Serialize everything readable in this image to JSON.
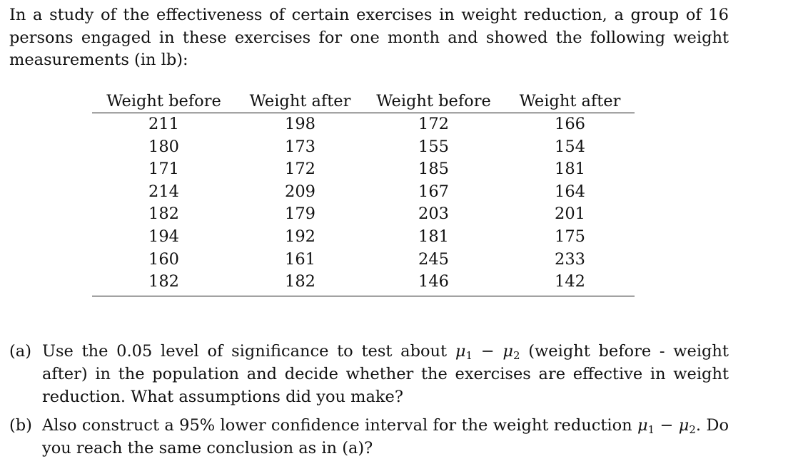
{
  "intro": "In a study of the effectiveness of certain exercises in weight reduction, a group of 16 persons engaged in these exercises for one month and showed the following weight measurements (in lb):",
  "tables": {
    "left": {
      "headers": [
        "Weight before",
        "Weight after"
      ],
      "rows": [
        [
          "211",
          "198"
        ],
        [
          "180",
          "173"
        ],
        [
          "171",
          "172"
        ],
        [
          "214",
          "209"
        ],
        [
          "182",
          "179"
        ],
        [
          "194",
          "192"
        ],
        [
          "160",
          "161"
        ],
        [
          "182",
          "182"
        ]
      ]
    },
    "right": {
      "headers": [
        "Weight before",
        "Weight after"
      ],
      "rows": [
        [
          "172",
          "166"
        ],
        [
          "155",
          "154"
        ],
        [
          "185",
          "181"
        ],
        [
          "167",
          "164"
        ],
        [
          "203",
          "201"
        ],
        [
          "181",
          "175"
        ],
        [
          "245",
          "233"
        ],
        [
          "146",
          "142"
        ]
      ]
    }
  },
  "parts": {
    "a": {
      "label": "(a)",
      "text_before": "Use the 0.05 level of significance to test about ",
      "mu1": "μ",
      "sub1": "1",
      "minus": " − ",
      "mu2": "μ",
      "sub2": "2",
      "text_after": " (weight before - weight after) in the population and decide whether the exercises are effective in weight reduction. What assumptions did you make?"
    },
    "b": {
      "label": "(b)",
      "text_before": "Also construct a 95% lower confidence interval for the weight reduction ",
      "mu1": "μ",
      "sub1": "1",
      "minus": " − ",
      "mu2": "μ",
      "sub2": "2",
      "text_after": ". Do you reach the same conclusion as in (a)?"
    }
  }
}
